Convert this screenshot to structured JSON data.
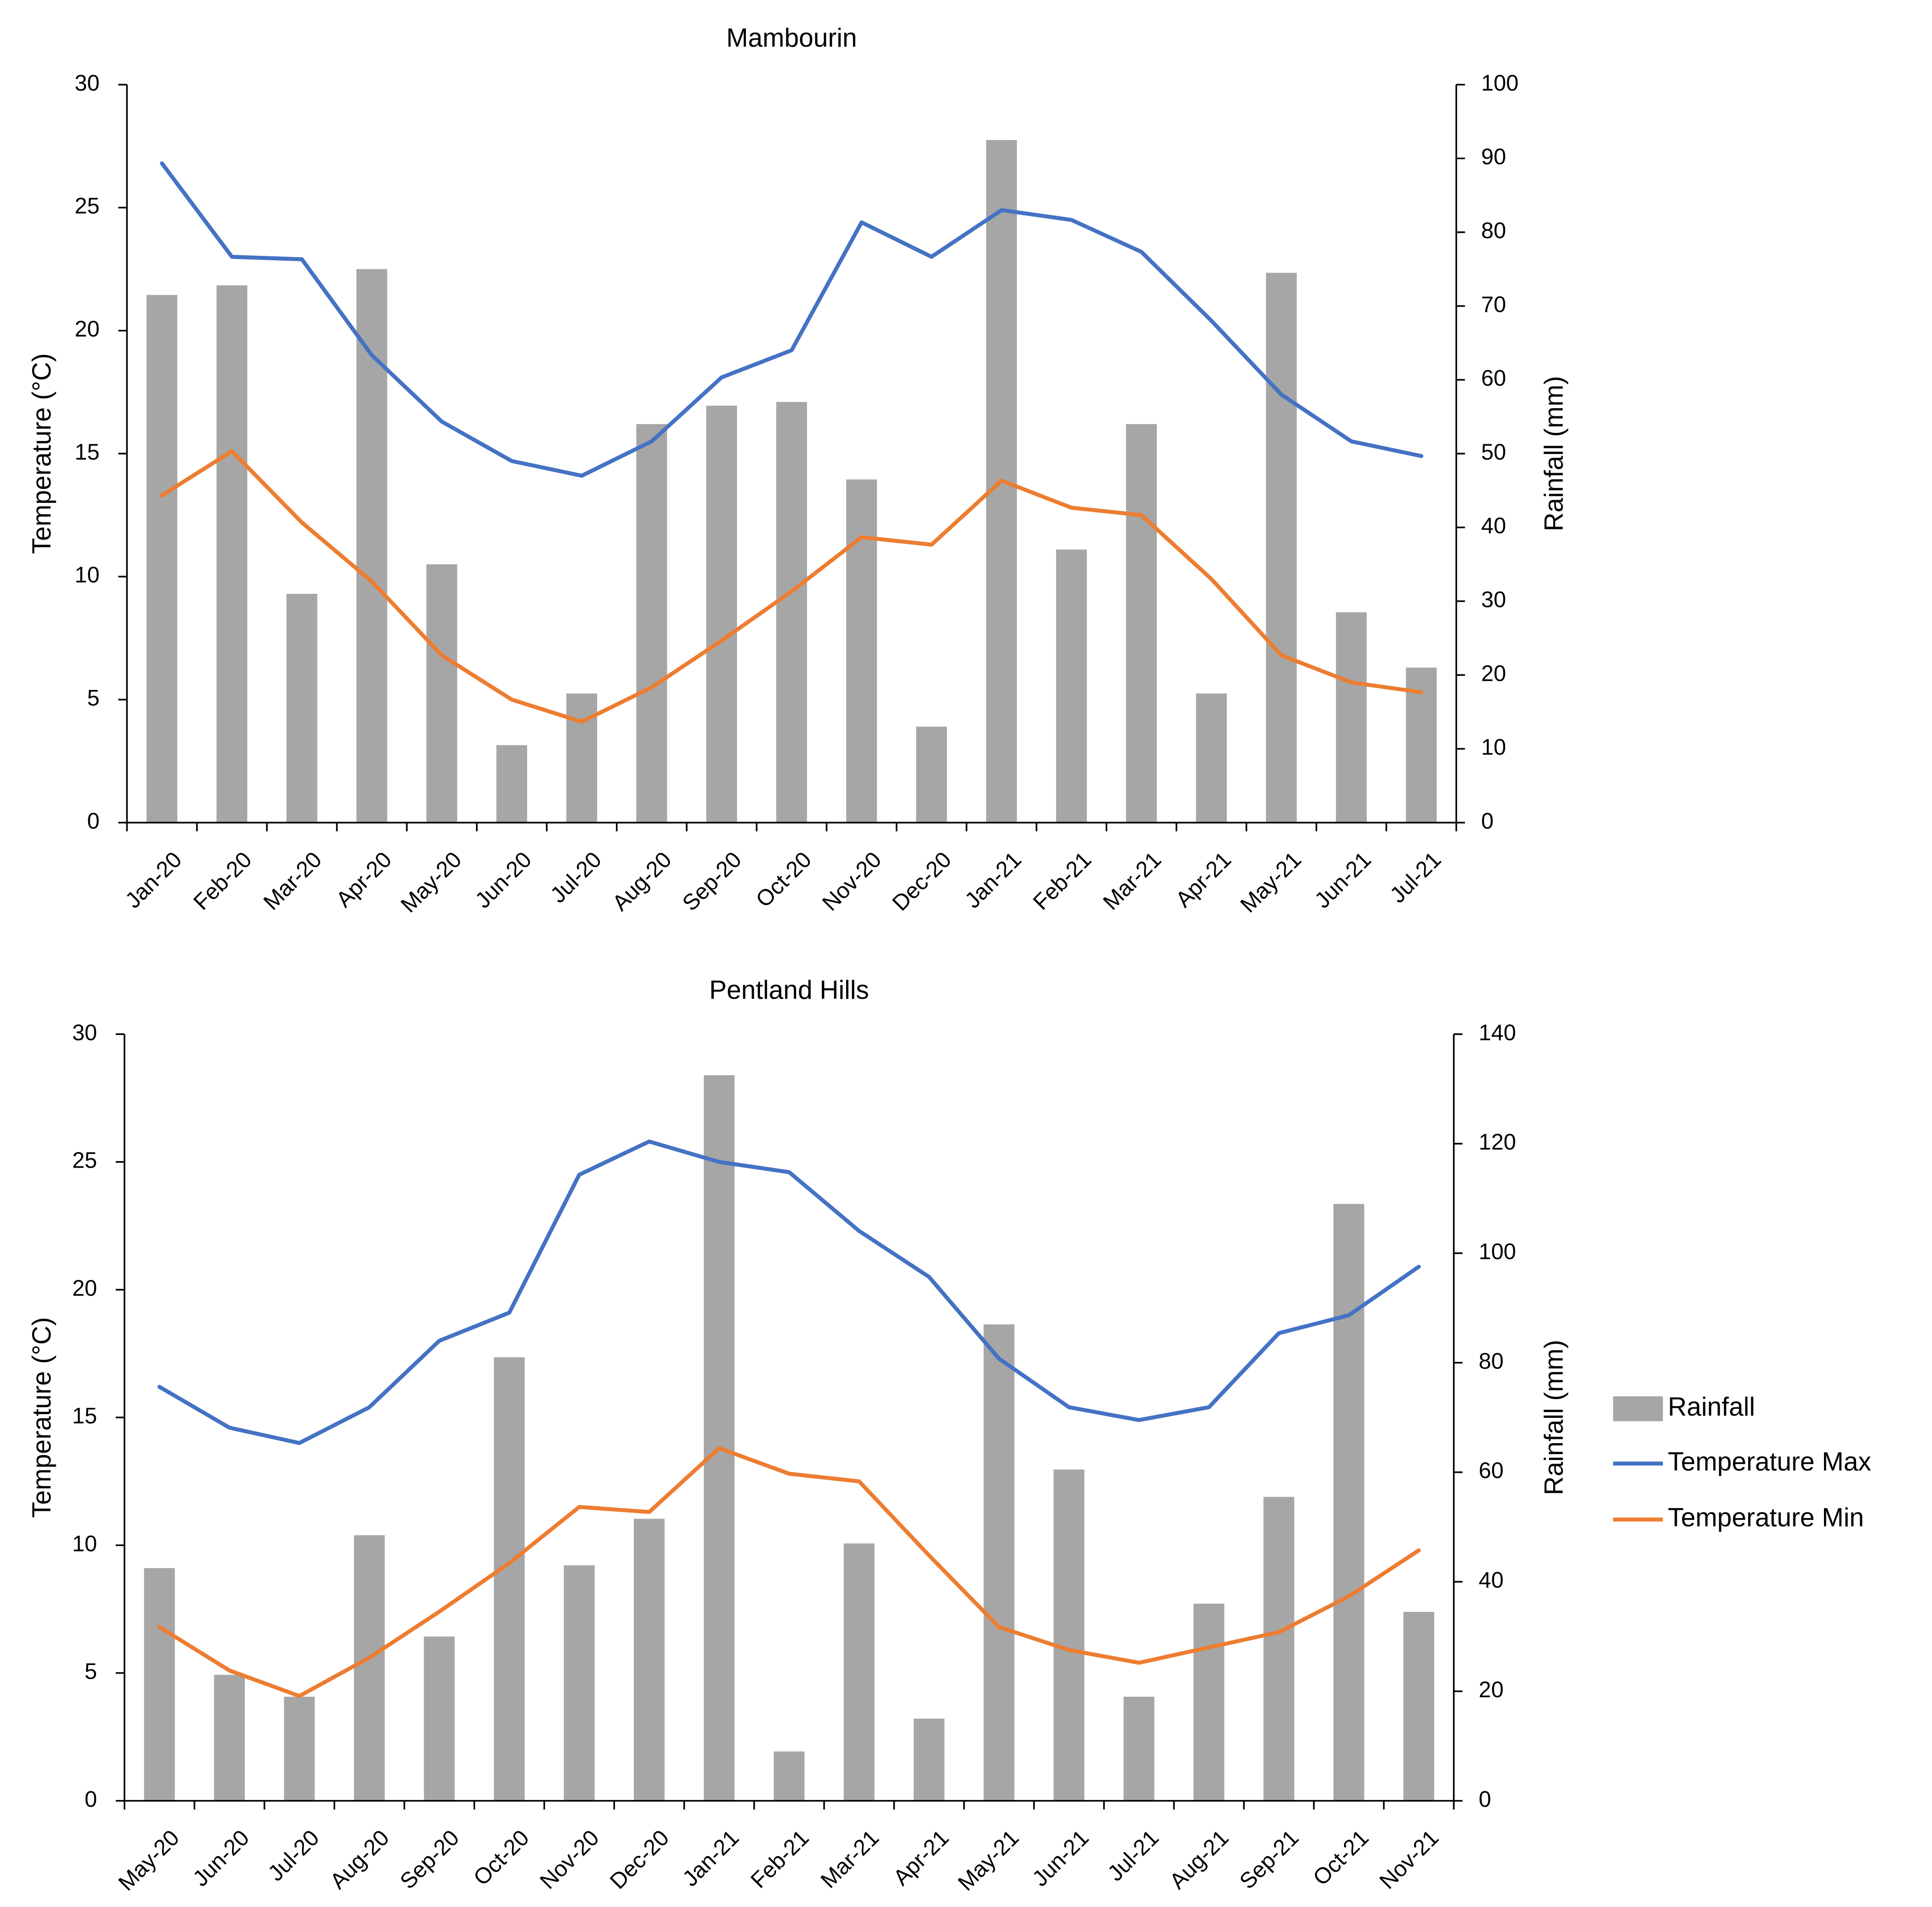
{
  "chart_data": [
    {
      "type": "bar+line",
      "title": "Mambourin",
      "ylabel_left": "Temperature (°C)",
      "ylabel_right": "Rainfall (mm)",
      "ylim_left": [
        0,
        30
      ],
      "ylim_right": [
        0,
        100
      ],
      "yticks_left": [
        0,
        5,
        10,
        15,
        20,
        25,
        30
      ],
      "yticks_right": [
        0,
        10,
        20,
        30,
        40,
        50,
        60,
        70,
        80,
        90,
        100
      ],
      "categories": [
        "Jan-20",
        "Feb-20",
        "Mar-20",
        "Apr-20",
        "May-20",
        "Jun-20",
        "Jul-20",
        "Aug-20",
        "Sep-20",
        "Oct-20",
        "Nov-20",
        "Dec-20",
        "Jan-21",
        "Feb-21",
        "Mar-21",
        "Apr-21",
        "May-21",
        "Jun-21",
        "Jul-21"
      ],
      "series": [
        {
          "name": "Rainfall",
          "type": "bar",
          "axis": "right",
          "values": [
            71.5,
            72.8,
            31.0,
            75.0,
            35.0,
            10.5,
            17.5,
            54.0,
            56.5,
            57.0,
            46.5,
            13.0,
            92.5,
            37.0,
            54.0,
            17.5,
            74.5,
            28.5,
            21.0
          ]
        },
        {
          "name": "Temperature Max",
          "type": "line",
          "axis": "left",
          "values": [
            26.8,
            23.0,
            22.9,
            19.0,
            16.3,
            14.7,
            14.1,
            15.5,
            18.1,
            19.2,
            24.4,
            23.0,
            24.9,
            24.5,
            23.2,
            20.4,
            17.4,
            15.5,
            14.9
          ]
        },
        {
          "name": "Temperature Min",
          "type": "line",
          "axis": "left",
          "values": [
            13.3,
            15.1,
            12.2,
            9.8,
            6.8,
            5.0,
            4.1,
            5.5,
            7.4,
            9.4,
            11.6,
            11.3,
            13.9,
            12.8,
            12.5,
            9.9,
            6.8,
            5.7,
            5.3
          ]
        }
      ]
    },
    {
      "type": "bar+line",
      "title": "Pentland Hills",
      "ylabel_left": "Temperature (°C)",
      "ylabel_right": "Rainfall (mm)",
      "ylim_left": [
        0,
        30
      ],
      "ylim_right": [
        0,
        140
      ],
      "yticks_left": [
        0,
        5,
        10,
        15,
        20,
        25,
        30
      ],
      "yticks_right": [
        0,
        20,
        40,
        60,
        80,
        100,
        120,
        140
      ],
      "categories": [
        "May-20",
        "Jun-20",
        "Jul-20",
        "Aug-20",
        "Sep-20",
        "Oct-20",
        "Nov-20",
        "Dec-20",
        "Jan-21",
        "Feb-21",
        "Mar-21",
        "Apr-21",
        "May-21",
        "Jun-21",
        "Jul-21",
        "Aug-21",
        "Sep-21",
        "Oct-21",
        "Nov-21"
      ],
      "series": [
        {
          "name": "Rainfall",
          "type": "bar",
          "axis": "right",
          "values": [
            42.5,
            23.0,
            19.0,
            48.5,
            30.0,
            81.0,
            43.0,
            51.5,
            132.5,
            9.0,
            47.0,
            15.0,
            87.0,
            60.5,
            19.0,
            36.0,
            55.5,
            109.0,
            34.5
          ]
        },
        {
          "name": "Temperature Max",
          "type": "line",
          "axis": "left",
          "values": [
            16.2,
            14.6,
            14.0,
            15.4,
            18.0,
            19.1,
            24.5,
            25.8,
            25.0,
            24.6,
            22.3,
            20.5,
            17.3,
            15.4,
            14.9,
            15.4,
            18.3,
            19.0,
            20.9
          ]
        },
        {
          "name": "Temperature Min",
          "type": "line",
          "axis": "left",
          "values": [
            6.8,
            5.1,
            4.1,
            5.6,
            7.4,
            9.3,
            11.5,
            11.3,
            13.8,
            12.8,
            12.5,
            9.6,
            6.8,
            5.9,
            5.4,
            6.0,
            6.6,
            8.0,
            9.8
          ]
        }
      ]
    }
  ],
  "legend": {
    "items": [
      {
        "label": "Rainfall",
        "kind": "bar",
        "color": "#a6a6a6"
      },
      {
        "label": "Temperature Max",
        "kind": "line",
        "color": "#4472c4"
      },
      {
        "label": "Temperature Min",
        "kind": "line",
        "color": "#ed7d31"
      }
    ]
  },
  "colors": {
    "rainfall": "#a6a6a6",
    "temperature_max": "#4472c4",
    "temperature_min": "#ed7d31",
    "axis": "#000000"
  }
}
